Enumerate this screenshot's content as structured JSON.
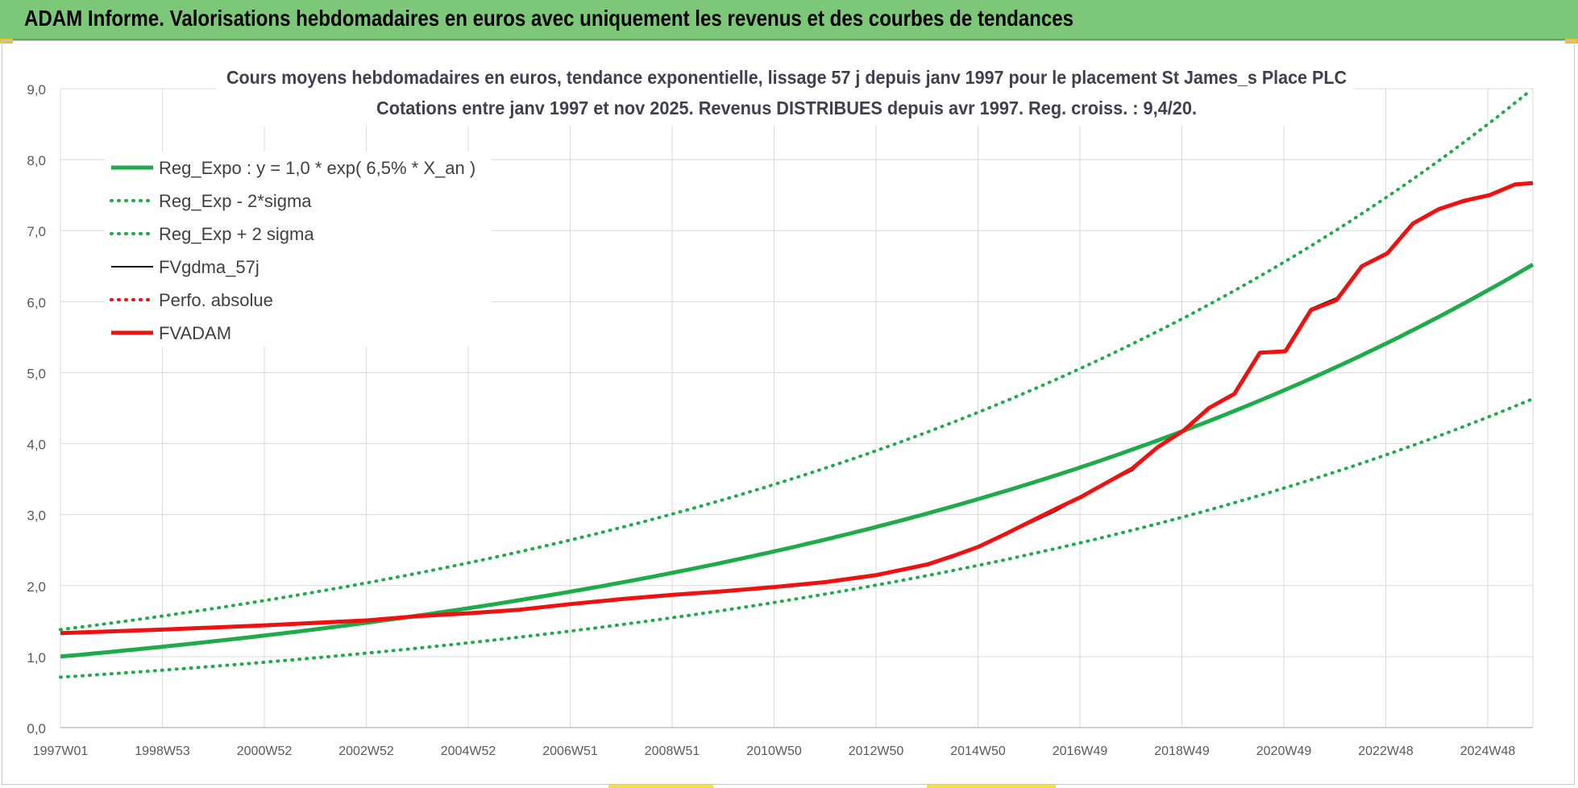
{
  "header": {
    "title": "ADAM Informe. Valorisations hebdomadaires en euros avec uniquement les revenus et des courbes de tendances"
  },
  "chart_data": {
    "type": "line",
    "title_line1": "Cours moyens hebdomadaires en euros, tendance exponentielle, lissage 57 j depuis janv 1997  pour le placement St James_s Place PLC",
    "title_line2": "Cotations entre janv 1997 et nov 2025. Revenus DISTRIBUES depuis avr 1997. Reg. croiss. : 9,4/20.",
    "ylim": [
      0,
      9
    ],
    "y_ticks": [
      "0,0",
      "1,0",
      "2,0",
      "3,0",
      "4,0",
      "5,0",
      "6,0",
      "7,0",
      "8,0",
      "9,0"
    ],
    "x_ticks": [
      "1997W01",
      "1998W53",
      "2000W52",
      "2002W52",
      "2004W52",
      "2006W51",
      "2008W51",
      "2010W50",
      "2012W50",
      "2014W50",
      "2016W49",
      "2018W49",
      "2020W49",
      "2022W48",
      "2024W48"
    ],
    "x_range_years": [
      1997.0,
      2025.85
    ],
    "grid": true,
    "legend_position": "top-left",
    "colors": {
      "green": "#1fab4a",
      "black": "#000000",
      "red": "#ee1111"
    },
    "series": [
      {
        "name": "Reg_Expo : y = 1,0 * exp( 6,5% *  X_an )",
        "style": "solid-thick",
        "color": "#1fab4a",
        "a": 1.0,
        "rate": 0.065
      },
      {
        "name": "Reg_Exp - 2*sigma",
        "style": "dotted",
        "color": "#1fab4a",
        "a": 0.71,
        "rate": 0.065
      },
      {
        "name": "Reg_Exp + 2 sigma",
        "style": "dotted",
        "color": "#1fab4a",
        "a": 1.38,
        "rate": 0.065
      },
      {
        "name": "FVgdma_57j",
        "style": "solid-thin",
        "color": "#000000",
        "points": [
          [
            1997.0,
            1.33
          ],
          [
            1999.0,
            1.38
          ],
          [
            2001.0,
            1.44
          ],
          [
            2003.0,
            1.51
          ],
          [
            2004.0,
            1.57
          ],
          [
            2005.0,
            1.61
          ],
          [
            2006.0,
            1.66
          ],
          [
            2007.0,
            1.74
          ],
          [
            2008.0,
            1.81
          ],
          [
            2009.0,
            1.87
          ],
          [
            2010.0,
            1.92
          ],
          [
            2011.0,
            1.98
          ],
          [
            2012.0,
            2.05
          ],
          [
            2013.0,
            2.15
          ],
          [
            2014.0,
            2.3
          ],
          [
            2014.5,
            2.4
          ],
          [
            2015.0,
            2.55
          ],
          [
            2015.5,
            2.72
          ],
          [
            2016.0,
            2.88
          ],
          [
            2016.5,
            3.05
          ],
          [
            2017.0,
            3.25
          ],
          [
            2017.5,
            3.45
          ],
          [
            2018.0,
            3.62
          ],
          [
            2018.5,
            3.95
          ],
          [
            2019.0,
            4.2
          ],
          [
            2019.5,
            4.5
          ],
          [
            2020.0,
            4.7
          ],
          [
            2020.5,
            5.28
          ],
          [
            2021.0,
            5.3
          ],
          [
            2021.5,
            5.9
          ],
          [
            2022.0,
            6.05
          ],
          [
            2022.5,
            6.5
          ],
          [
            2023.0,
            6.7
          ],
          [
            2023.5,
            7.1
          ],
          [
            2024.0,
            7.3
          ],
          [
            2024.5,
            7.4
          ],
          [
            2025.0,
            7.5
          ],
          [
            2025.5,
            7.65
          ],
          [
            2025.85,
            7.67
          ]
        ]
      },
      {
        "name": "Perfo. absolue",
        "style": "dotted",
        "color": "#ee1111",
        "hidden_behind": "FVADAM"
      },
      {
        "name": "FVADAM",
        "style": "solid-thick",
        "color": "#ee1111",
        "points": [
          [
            1997.0,
            1.33
          ],
          [
            1999.0,
            1.38
          ],
          [
            2001.0,
            1.44
          ],
          [
            2003.0,
            1.51
          ],
          [
            2004.0,
            1.57
          ],
          [
            2005.0,
            1.61
          ],
          [
            2006.0,
            1.66
          ],
          [
            2007.0,
            1.74
          ],
          [
            2008.0,
            1.81
          ],
          [
            2009.0,
            1.87
          ],
          [
            2010.0,
            1.92
          ],
          [
            2011.0,
            1.98
          ],
          [
            2012.0,
            2.05
          ],
          [
            2013.0,
            2.15
          ],
          [
            2014.0,
            2.3
          ],
          [
            2014.5,
            2.42
          ],
          [
            2015.0,
            2.55
          ],
          [
            2015.5,
            2.72
          ],
          [
            2016.0,
            2.9
          ],
          [
            2016.5,
            3.08
          ],
          [
            2017.0,
            3.25
          ],
          [
            2017.5,
            3.45
          ],
          [
            2018.0,
            3.65
          ],
          [
            2018.5,
            3.95
          ],
          [
            2019.0,
            4.18
          ],
          [
            2019.5,
            4.5
          ],
          [
            2020.0,
            4.7
          ],
          [
            2020.5,
            5.28
          ],
          [
            2021.0,
            5.3
          ],
          [
            2021.5,
            5.88
          ],
          [
            2022.0,
            6.02
          ],
          [
            2022.5,
            6.5
          ],
          [
            2023.0,
            6.68
          ],
          [
            2023.5,
            7.1
          ],
          [
            2024.0,
            7.3
          ],
          [
            2024.5,
            7.42
          ],
          [
            2025.0,
            7.5
          ],
          [
            2025.5,
            7.65
          ],
          [
            2025.85,
            7.67
          ]
        ]
      }
    ]
  }
}
